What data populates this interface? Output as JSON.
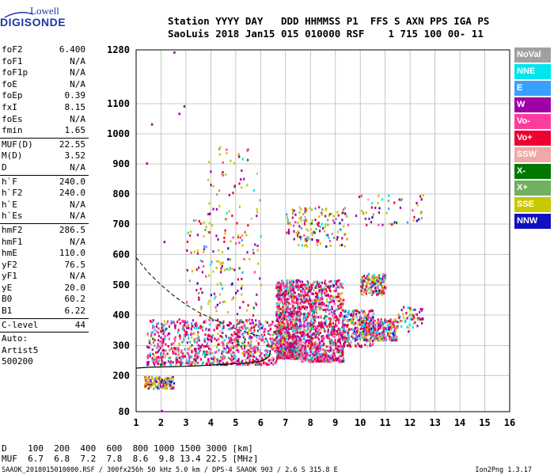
{
  "logo": {
    "top": "Lowell",
    "main": "DIGISONDE"
  },
  "header": {
    "labels": "Station YYYY DAY   DDD HHMMSS P1  FFS S AXN PPS IGA PS",
    "values": "SaoLuis 2018 Jan15 015 010000 RSF    1 715 100 00- 11"
  },
  "params": [
    {
      "label": "foF2",
      "value": "6.400"
    },
    {
      "label": "foF1",
      "value": "N/A"
    },
    {
      "label": "foF1p",
      "value": "N/A"
    },
    {
      "label": "foE",
      "value": "N/A"
    },
    {
      "label": "foEp",
      "value": "0.39"
    },
    {
      "label": "fxI",
      "value": "8.15"
    },
    {
      "label": "foEs",
      "value": "N/A"
    },
    {
      "label": "fmin",
      "value": "1.65"
    },
    {
      "sep": true
    },
    {
      "label": "MUF(D)",
      "value": "22.55"
    },
    {
      "label": "M(D)",
      "value": "3.52"
    },
    {
      "label": "D",
      "value": "N/A"
    },
    {
      "sep": true
    },
    {
      "label": "h`F",
      "value": "240.0"
    },
    {
      "label": "h`F2",
      "value": "240.0"
    },
    {
      "label": "h`E",
      "value": "N/A"
    },
    {
      "label": "h`Es",
      "value": "N/A"
    },
    {
      "sep": true
    },
    {
      "label": "hmF2",
      "value": "286.5"
    },
    {
      "label": "hmF1",
      "value": "N/A"
    },
    {
      "label": "hmE",
      "value": "110.0"
    },
    {
      "label": "yF2",
      "value": "76.5"
    },
    {
      "label": "yF1",
      "value": "N/A"
    },
    {
      "label": "yE",
      "value": "20.0"
    },
    {
      "label": "B0",
      "value": "60.2"
    },
    {
      "label": "B1",
      "value": "6.22"
    },
    {
      "sep": true
    },
    {
      "label": "C-level",
      "value": "44"
    },
    {
      "sep": true
    },
    {
      "label": "Auto:",
      "value": ""
    },
    {
      "label": "Artist5",
      "value": ""
    },
    {
      "label": "500200",
      "value": ""
    }
  ],
  "legend": [
    {
      "label": "NoVal",
      "color": "#a0a0a0"
    },
    {
      "label": "NNE",
      "color": "#00e5ee"
    },
    {
      "label": "E",
      "color": "#3aa0ff"
    },
    {
      "label": "W",
      "color": "#a000a8"
    },
    {
      "label": "Vo-",
      "color": "#ff3c9e"
    },
    {
      "label": "Vo+",
      "color": "#ee0030"
    },
    {
      "label": "SSW",
      "color": "#f0a8a8"
    },
    {
      "label": "X-",
      "color": "#007800"
    },
    {
      "label": "X+",
      "color": "#70b060"
    },
    {
      "label": "SSE",
      "color": "#c8c800"
    },
    {
      "label": "NNW",
      "color": "#1010c0"
    }
  ],
  "bottom": {
    "line1": "D    100  200  400  600  800 1000 1500 3000 [km]",
    "line2": "MUF  6.7  6.8  7.2  7.8  8.6  9.8 13.4 22.5 [MHz]"
  },
  "footer": {
    "left": "SAAOK_2018015010000.RSF / 300fx256h 50 kHz 5.0 km / DPS-4 SAAOK 903 / 2.6 S 315.8 E",
    "right": "Ion2Png 1.3.17"
  },
  "chart_data": {
    "type": "scatter",
    "title": "",
    "xlabel": "",
    "ylabel": "",
    "xlim": [
      1,
      16
    ],
    "ylim": [
      80,
      1280
    ],
    "x_ticks": [
      "1",
      "2",
      "3",
      "4",
      "5",
      "6",
      "7",
      "8",
      "9",
      "10",
      "11",
      "12",
      "13",
      "14",
      "15",
      "16"
    ],
    "y_ticks": [
      "80",
      "200",
      "300",
      "400",
      "500",
      "600",
      "700",
      "800",
      "900",
      "1000",
      "1100",
      "1280"
    ],
    "y_tick_values": [
      80,
      200,
      300,
      400,
      500,
      600,
      700,
      800,
      900,
      1000,
      1100,
      1280
    ],
    "grid": true,
    "trace_h": {
      "name": "",
      "x": [
        1.0,
        1.5,
        2.0,
        2.5,
        3.0,
        3.5,
        4.0,
        4.5,
        5.0,
        5.5,
        6.0,
        6.2,
        6.35,
        6.4
      ],
      "y": [
        225,
        228,
        229,
        230,
        231,
        233,
        235,
        237,
        240,
        243,
        248,
        255,
        265,
        285
      ]
    },
    "trace_dashed": {
      "name": "",
      "x": [
        1.0,
        1.5,
        2.0,
        2.5,
        3.0,
        3.5,
        4.0,
        4.5,
        5.0,
        5.5,
        6.0
      ],
      "y": [
        590,
        540,
        500,
        465,
        435,
        410,
        390,
        372,
        355,
        342,
        330
      ]
    },
    "echo_regions": [
      {
        "x": [
          1.4,
          6.6
        ],
        "y": [
          240,
          390
        ],
        "density": "high"
      },
      {
        "x": [
          6.6,
          7.6
        ],
        "y": [
          260,
          520
        ],
        "density": "high"
      },
      {
        "x": [
          7.6,
          9.3
        ],
        "y": [
          250,
          520
        ],
        "density": "high"
      },
      {
        "x": [
          9.3,
          10.5
        ],
        "y": [
          300,
          420
        ],
        "density": "medium"
      },
      {
        "x": [
          10.0,
          11.5
        ],
        "y": [
          320,
          390
        ],
        "density": "medium"
      },
      {
        "x": [
          3.0,
          6.0
        ],
        "y": [
          400,
          720
        ],
        "density": "low"
      },
      {
        "x": [
          3.8,
          6.0
        ],
        "y": [
          720,
          960
        ],
        "density": "sparse"
      },
      {
        "x": [
          7.0,
          9.5
        ],
        "y": [
          630,
          760
        ],
        "density": "low"
      },
      {
        "x": [
          9.8,
          12.5
        ],
        "y": [
          700,
          800
        ],
        "density": "sparse"
      },
      {
        "x": [
          10.0,
          11.0
        ],
        "y": [
          470,
          540
        ],
        "density": "low"
      },
      {
        "x": [
          1.3,
          2.5
        ],
        "y": [
          160,
          200
        ],
        "density": "low"
      },
      {
        "x": [
          11.5,
          12.5
        ],
        "y": [
          360,
          430
        ],
        "density": "sparse"
      }
    ],
    "isolated_points": [
      {
        "x": 2.5,
        "y": 1275
      },
      {
        "x": 2.7,
        "y": 1070
      },
      {
        "x": 2.9,
        "y": 1095
      },
      {
        "x": 1.6,
        "y": 1035
      },
      {
        "x": 1.4,
        "y": 905
      },
      {
        "x": 2.1,
        "y": 645
      },
      {
        "x": 2.0,
        "y": 86
      },
      {
        "x": 11.9,
        "y": 350
      }
    ]
  }
}
